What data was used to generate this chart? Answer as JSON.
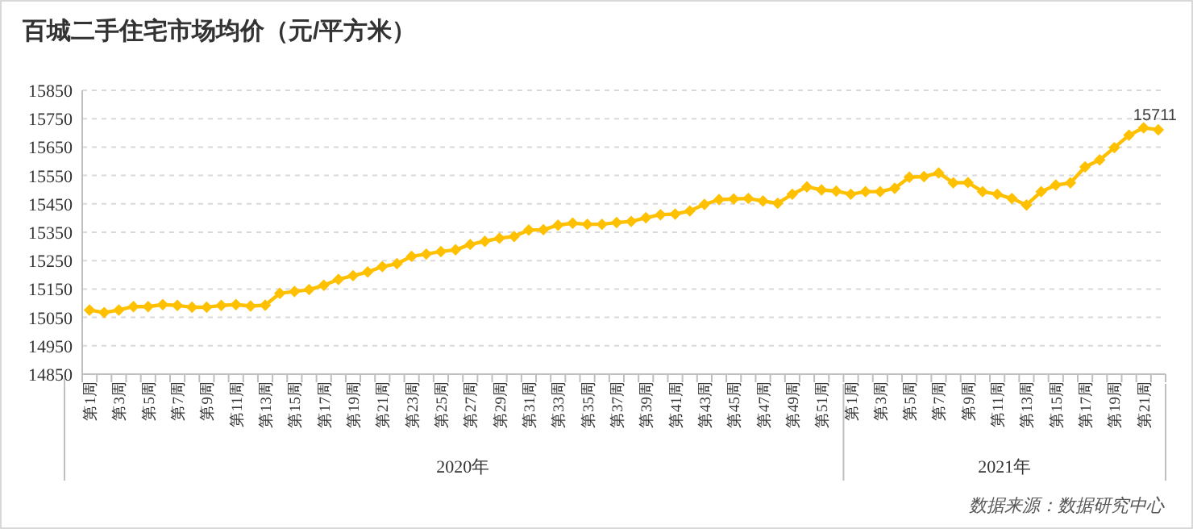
{
  "chart_data": {
    "type": "line",
    "title": "百城二手住宅市场均价（元/平方米）",
    "categories": [
      "第1周",
      null,
      "第3周",
      null,
      "第5周",
      null,
      "第7周",
      null,
      "第9周",
      null,
      "第11周",
      null,
      "第13周",
      null,
      "第15周",
      null,
      "第17周",
      null,
      "第19周",
      null,
      "第21周",
      null,
      "第23周",
      null,
      "第25周",
      null,
      "第27周",
      null,
      "第29周",
      null,
      "第31周",
      null,
      "第33周",
      null,
      "第35周",
      null,
      "第37周",
      null,
      "第39周",
      null,
      "第41周",
      null,
      "第43周",
      null,
      "第45周",
      null,
      "第47周",
      null,
      "第49周",
      null,
      "第51周",
      null,
      "第1周",
      null,
      "第3周",
      null,
      "第5周",
      null,
      "第7周",
      null,
      "第9周",
      null,
      "第11周",
      null,
      "第13周",
      null,
      "第15周",
      null,
      "第17周",
      null,
      "第19周",
      null,
      "第21周",
      null
    ],
    "series": [
      {
        "color": "#ffc000",
        "values": [
          15076,
          15067,
          15076,
          15088,
          15088,
          15095,
          15092,
          15086,
          15086,
          15092,
          15095,
          15090,
          15093,
          15135,
          15141,
          15148,
          15163,
          15184,
          15197,
          15210,
          15229,
          15239,
          15265,
          15273,
          15282,
          15288,
          15307,
          15318,
          15329,
          15335,
          15358,
          15359,
          15375,
          15382,
          15378,
          15378,
          15384,
          15388,
          15401,
          15412,
          15414,
          15425,
          15448,
          15465,
          15467,
          15469,
          15460,
          15452,
          15484,
          15510,
          15499,
          15495,
          15484,
          15493,
          15493,
          15505,
          15544,
          15546,
          15559,
          15524,
          15525,
          15493,
          15484,
          15469,
          15446,
          15493,
          15516,
          15524,
          15580,
          15605,
          15648,
          15692,
          15718,
          15711
        ],
        "value_labels": [
          null,
          null,
          null,
          null,
          null,
          null,
          null,
          null,
          null,
          null,
          null,
          null,
          null,
          null,
          null,
          null,
          null,
          null,
          null,
          null,
          null,
          null,
          null,
          null,
          null,
          null,
          null,
          null,
          null,
          null,
          null,
          null,
          null,
          null,
          null,
          null,
          null,
          null,
          null,
          null,
          null,
          null,
          null,
          null,
          null,
          null,
          null,
          null,
          null,
          null,
          null,
          null,
          null,
          null,
          null,
          null,
          null,
          null,
          null,
          null,
          null,
          null,
          null,
          null,
          null,
          null,
          null,
          null,
          null,
          null,
          null,
          null,
          null,
          "15711"
        ]
      }
    ],
    "ylim": [
      14850,
      15850
    ],
    "yticks": [
      14850,
      14950,
      15050,
      15150,
      15250,
      15350,
      15450,
      15550,
      15650,
      15750,
      15850
    ],
    "grid": "y",
    "marker": "diamond",
    "line_style": "solid",
    "annotations": [
      "2020年",
      "2021年",
      "数据来源：数据研究中心"
    ]
  }
}
